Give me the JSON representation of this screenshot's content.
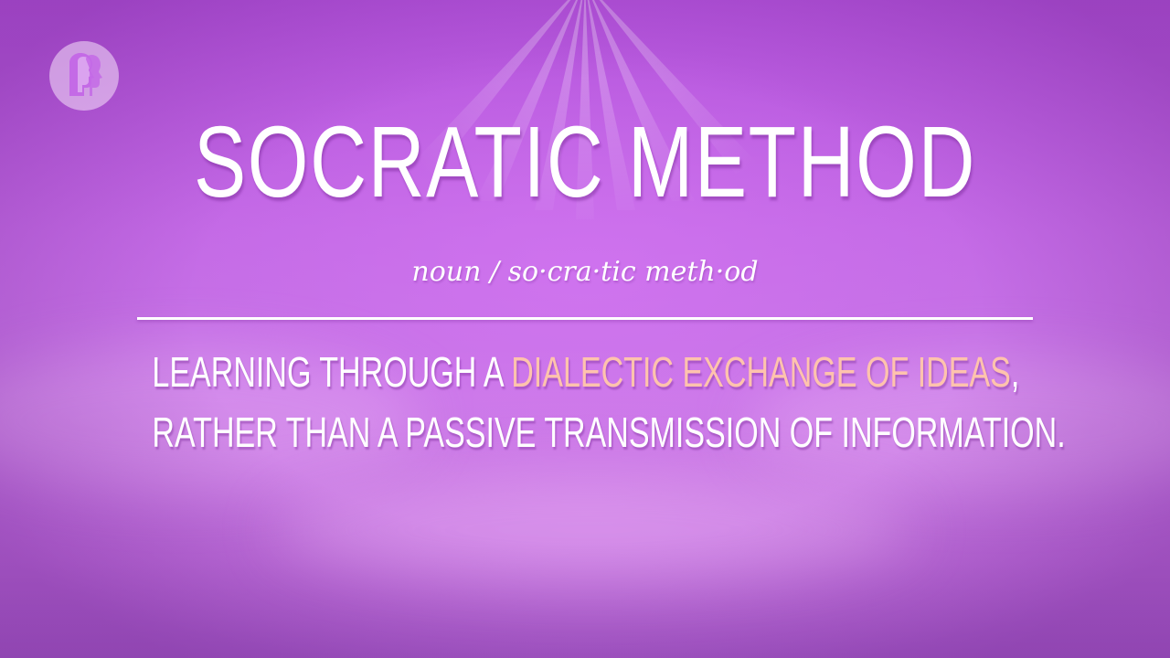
{
  "title": "SOCRATIC METHOD",
  "pronunciation": "noun / so·cra·tic meth·od",
  "definition": {
    "line1_before": "LEARNING THROUGH A ",
    "line1_highlight": "DIALECTIC EXCHANGE OF IDEAS",
    "line1_after": ",",
    "line2": "RATHER THAN A PASSIVE TRANSMISSION OF INFORMATION."
  },
  "logo": {
    "icon": "pbs-logo-icon"
  },
  "colors": {
    "background": "#c46ae6",
    "text": "#ffffff",
    "highlight": "#ffc3ad"
  }
}
